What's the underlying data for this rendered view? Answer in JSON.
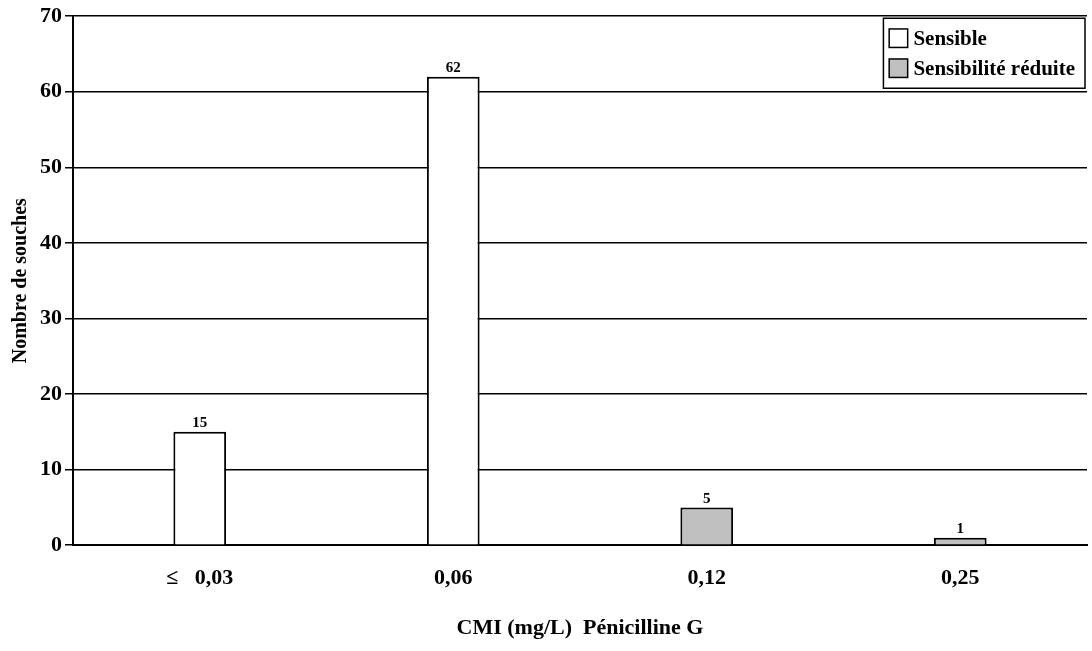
{
  "chart_data": {
    "type": "bar",
    "xlabel": "CMI (mg/L)  Pénicilline G",
    "ylabel": "Nombre de souches",
    "categories": [
      "≤   0,03",
      "0,06",
      "0,12",
      "0,25"
    ],
    "series": [
      {
        "name": "Sensible",
        "color": "#ffffff",
        "values": [
          15,
          62,
          null,
          null
        ]
      },
      {
        "name": "Sensibilité réduite",
        "color": "#c0c0c0",
        "values": [
          null,
          null,
          5,
          1
        ]
      }
    ],
    "ylim": [
      0,
      70
    ],
    "yticks": [
      0,
      10,
      20,
      30,
      40,
      50,
      60,
      70
    ],
    "grid": "y",
    "legend": "top right",
    "data_labels": true
  }
}
